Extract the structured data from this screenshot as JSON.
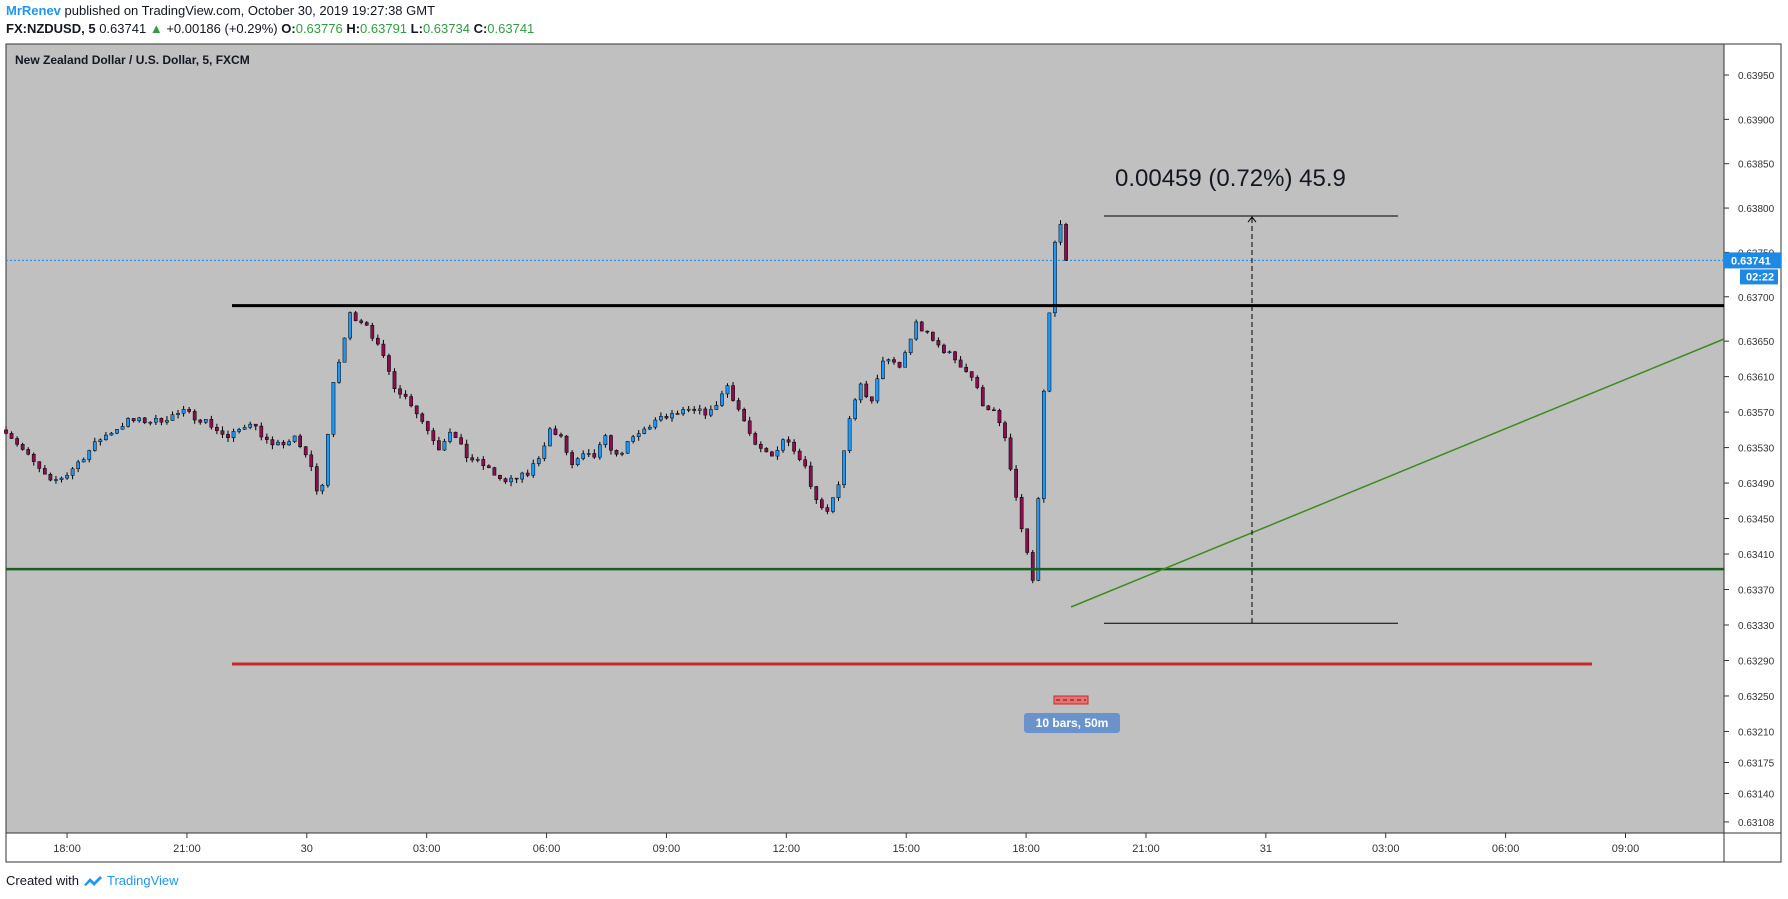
{
  "header": {
    "author": "MrRenev",
    "published_text": "published on TradingView.com, October 30, 2019 19:27:38 GMT",
    "symbol": "FX:NZDUSD, 5",
    "last": "0.63741",
    "change_arrow": "▲",
    "change": "+0.00186 (+0.29%)",
    "open_label": "O:",
    "open": "0.63776",
    "high_label": "H:",
    "high": "0.63791",
    "low_label": "L:",
    "low": "0.63734",
    "close_label": "C:",
    "close": "0.63741"
  },
  "footer": {
    "created_with": "Created with",
    "brand": "TradingView"
  },
  "colors": {
    "chart_bg": "#c0c0c0",
    "bull": "#2196f3",
    "bear": "#880e4f",
    "resistance": "#000000",
    "support": "#1b5e20",
    "stop": "#c62828",
    "trend": "#3d8b1f",
    "price_badge": "#1e88e5",
    "range_label_bg": "#6a93cc"
  },
  "chart_data": {
    "type": "candlestick",
    "title": "New Zealand Dollar / U.S. Dollar, 5, FXCM",
    "price_ticks": [
      "0.63950",
      "0.63900",
      "0.63850",
      "0.63800",
      "0.63750",
      "0.63700",
      "0.63650",
      "0.63610",
      "0.63570",
      "0.63530",
      "0.63490",
      "0.63450",
      "0.63410",
      "0.63370",
      "0.63330",
      "0.63290",
      "0.63250",
      "0.63210",
      "0.63175",
      "0.63140",
      "0.63108"
    ],
    "time_ticks": [
      "18:00",
      "21:00",
      "30",
      "03:00",
      "06:00",
      "09:00",
      "12:00",
      "15:00",
      "18:00",
      "21:00",
      "31",
      "03:00",
      "06:00",
      "09:00"
    ],
    "current_price": "0.63741",
    "countdown": "02:22",
    "path": [
      [
        0,
        0.6355
      ],
      [
        4,
        0.6352
      ],
      [
        8,
        0.6349
      ],
      [
        11,
        0.635
      ],
      [
        14,
        0.6352
      ],
      [
        17,
        0.6354
      ],
      [
        22,
        0.6356
      ],
      [
        27,
        0.6356
      ],
      [
        32,
        0.6357
      ],
      [
        36,
        0.6356
      ],
      [
        40,
        0.6354
      ],
      [
        44,
        0.6356
      ],
      [
        48,
        0.6353
      ],
      [
        52,
        0.6354
      ],
      [
        55,
        0.6351
      ],
      [
        56,
        0.6348
      ],
      [
        57,
        0.6349
      ],
      [
        59,
        0.636
      ],
      [
        62,
        0.6368
      ],
      [
        65,
        0.6367
      ],
      [
        68,
        0.6363
      ],
      [
        70,
        0.636
      ],
      [
        73,
        0.6358
      ],
      [
        75,
        0.6356
      ],
      [
        78,
        0.6353
      ],
      [
        80,
        0.6355
      ],
      [
        83,
        0.6352
      ],
      [
        86,
        0.6351
      ],
      [
        90,
        0.6349
      ],
      [
        94,
        0.635
      ],
      [
        96,
        0.6352
      ],
      [
        98,
        0.6355
      ],
      [
        100,
        0.6354
      ],
      [
        102,
        0.6351
      ],
      [
        104,
        0.6352
      ],
      [
        106,
        0.6352
      ],
      [
        108,
        0.6354
      ],
      [
        110,
        0.6352
      ],
      [
        113,
        0.6354
      ],
      [
        117,
        0.6356
      ],
      [
        122,
        0.6357
      ],
      [
        127,
        0.6357
      ],
      [
        130,
        0.636
      ],
      [
        133,
        0.6356
      ],
      [
        135,
        0.6353
      ],
      [
        138,
        0.6352
      ],
      [
        140,
        0.6354
      ],
      [
        142,
        0.6353
      ],
      [
        144,
        0.6351
      ],
      [
        146,
        0.6347
      ],
      [
        148,
        0.6346
      ],
      [
        150,
        0.6349
      ],
      [
        152,
        0.6356
      ],
      [
        154,
        0.636
      ],
      [
        156,
        0.6358
      ],
      [
        158,
        0.6363
      ],
      [
        161,
        0.6362
      ],
      [
        164,
        0.6367
      ],
      [
        167,
        0.6365
      ],
      [
        171,
        0.6363
      ],
      [
        174,
        0.6361
      ],
      [
        176,
        0.6358
      ],
      [
        178,
        0.6357
      ],
      [
        180,
        0.6354
      ],
      [
        182,
        0.6347
      ],
      [
        184,
        0.6341
      ],
      [
        185,
        0.6338
      ],
      [
        186,
        0.6347
      ],
      [
        187,
        0.6359
      ],
      [
        188,
        0.6368
      ],
      [
        189,
        0.6376
      ],
      [
        190,
        0.6378
      ],
      [
        191,
        0.63741
      ]
    ],
    "drawings": {
      "resistance_level": 0.6369,
      "support_level": 0.63393,
      "stop_level": 0.63286,
      "measure_top": 0.63791,
      "measure_bottom": 0.63332,
      "measure_label": "0.00459 (0.72%) 45.9",
      "range_label": "10 bars, 50m"
    }
  }
}
